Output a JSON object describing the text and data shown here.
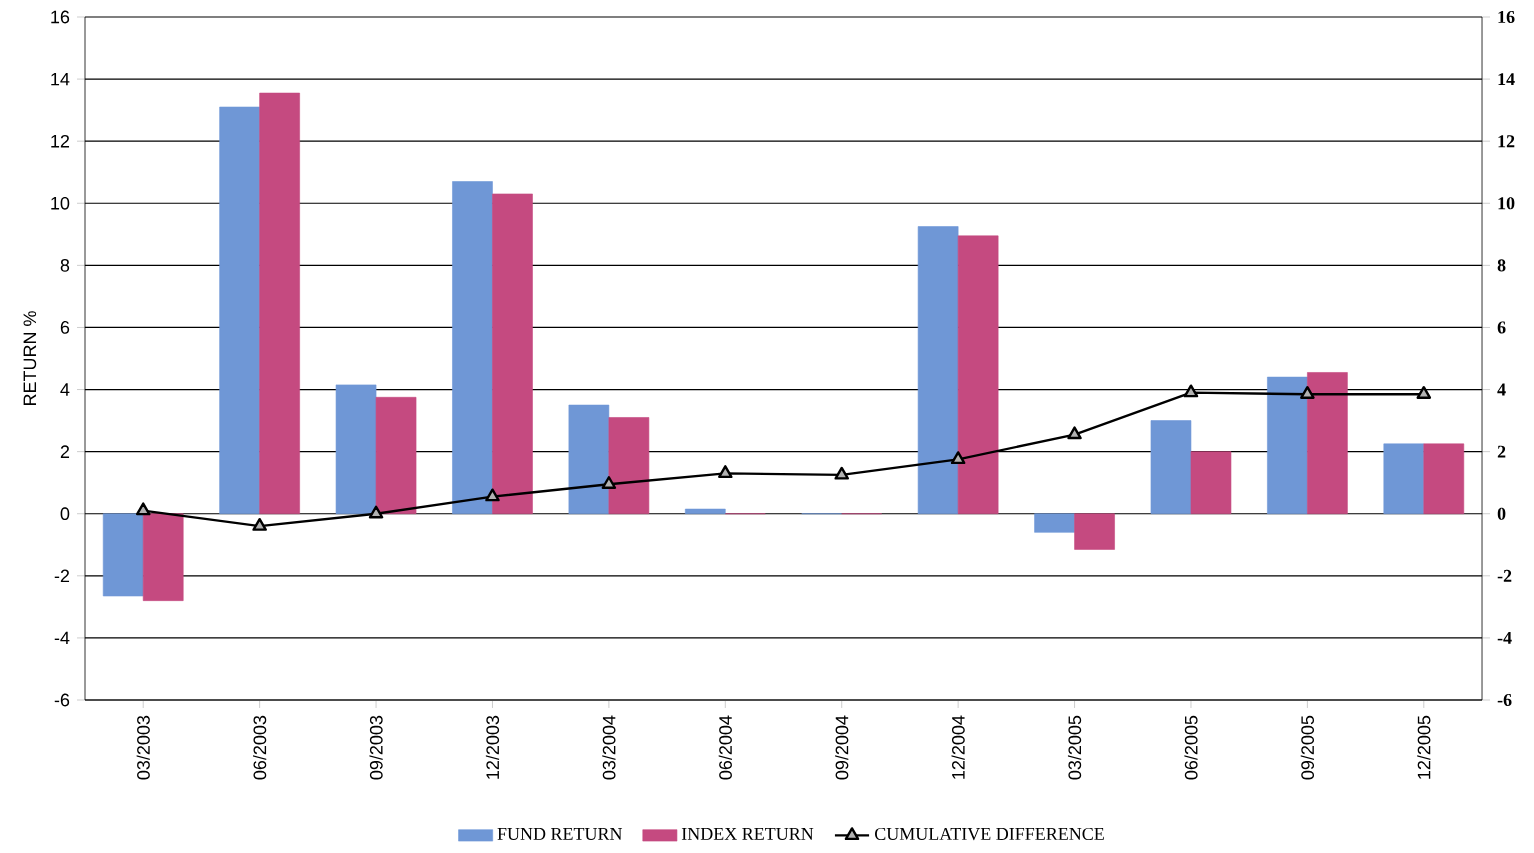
{
  "chart_data": {
    "type": "bar",
    "categories": [
      "03/2003",
      "06/2003",
      "09/2003",
      "12/2003",
      "03/2004",
      "06/2004",
      "09/2004",
      "12/2004",
      "03/2005",
      "06/2005",
      "09/2005",
      "12/2005"
    ],
    "series": [
      {
        "name": "FUND RETURN",
        "color": "#6f97d6",
        "values": [
          -2.65,
          13.1,
          4.15,
          10.7,
          3.5,
          0.15,
          0,
          9.25,
          -0.6,
          3.0,
          4.4,
          2.25
        ]
      },
      {
        "name": "INDEX RETURN",
        "color": "#c54a80",
        "values": [
          -2.8,
          13.55,
          3.75,
          10.3,
          3.1,
          0,
          0,
          8.95,
          -1.15,
          2.0,
          4.55,
          2.25
        ]
      },
      {
        "name": "CUMULATIVE DIFFERENCE",
        "color": "#000000",
        "type": "line",
        "axis": "y2",
        "marker": "triangle",
        "values": [
          0.1,
          -0.4,
          0.0,
          0.55,
          0.95,
          1.3,
          1.25,
          1.75,
          2.55,
          3.9,
          3.85,
          3.85
        ]
      }
    ],
    "ylabel": "RETURN %",
    "ylim": [
      -6,
      16
    ],
    "yticks": [
      -6,
      -4,
      -2,
      0,
      2,
      4,
      6,
      8,
      10,
      12,
      14,
      16
    ],
    "y2lim": [
      -6,
      16
    ],
    "y2ticks": [
      -6,
      -4,
      -2,
      0,
      2,
      4,
      6,
      8,
      10,
      12,
      14,
      16
    ],
    "grid": "y",
    "legend": "bottom"
  }
}
